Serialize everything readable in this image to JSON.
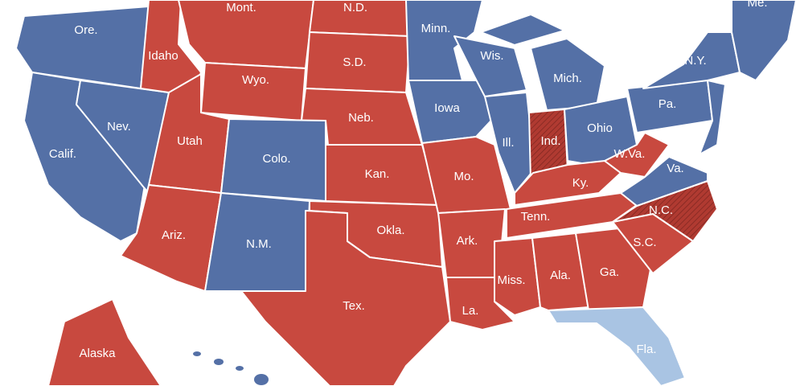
{
  "states": [
    "Ore.",
    "Idaho",
    "Mont.",
    "N.D.",
    "Minn.",
    "Wis.",
    "Mich.",
    "N.Y.",
    "Me.",
    "Pa.",
    "Ohio",
    "Ind.",
    "Ill.",
    "Iowa",
    "Neb.",
    "S.D.",
    "Wyo.",
    "Nev.",
    "Calif.",
    "Utah",
    "Colo.",
    "Kan.",
    "Mo.",
    "Ky.",
    "W.Va.",
    "Va.",
    "N.C.",
    "Tenn.",
    "Okla.",
    "Ark.",
    "Ariz.",
    "N.M.",
    "S.C.",
    "Ga.",
    "Ala.",
    "Miss.",
    "La.",
    "Tex.",
    "Fla.",
    "Alaska"
  ]
}
